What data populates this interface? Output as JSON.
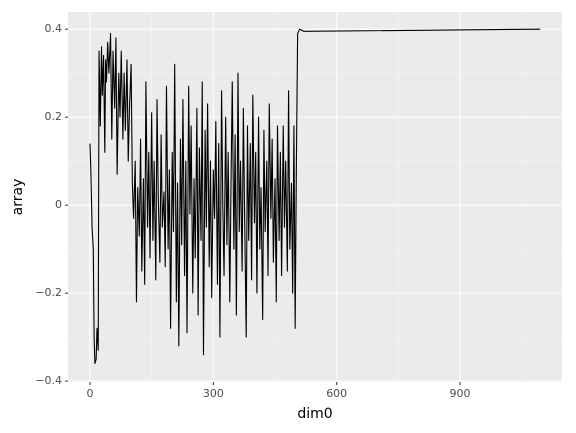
{
  "chart_data": {
    "type": "line",
    "xlabel": "dim0",
    "ylabel": "array",
    "color": "#000000",
    "grid": true,
    "x": [
      0,
      2,
      5,
      8,
      10,
      12,
      15,
      17,
      20,
      22,
      25,
      28,
      30,
      33,
      36,
      38,
      40,
      43,
      46,
      50,
      53,
      56,
      60,
      63,
      66,
      70,
      73,
      76,
      80,
      83,
      86,
      90,
      93,
      96,
      100,
      103,
      106,
      110,
      113,
      116,
      120,
      123,
      126,
      130,
      133,
      136,
      140,
      143,
      146,
      150,
      153,
      156,
      160,
      163,
      166,
      170,
      173,
      176,
      180,
      183,
      186,
      190,
      193,
      196,
      200,
      203,
      206,
      210,
      213,
      216,
      220,
      223,
      226,
      230,
      233,
      236,
      240,
      243,
      246,
      250,
      253,
      256,
      260,
      263,
      266,
      270,
      273,
      276,
      280,
      283,
      286,
      290,
      293,
      296,
      300,
      303,
      306,
      310,
      313,
      316,
      320,
      323,
      326,
      330,
      333,
      336,
      340,
      343,
      346,
      350,
      353,
      356,
      360,
      363,
      366,
      370,
      373,
      376,
      380,
      383,
      386,
      390,
      393,
      396,
      400,
      403,
      406,
      410,
      413,
      416,
      420,
      423,
      426,
      430,
      433,
      436,
      440,
      443,
      446,
      450,
      453,
      456,
      460,
      463,
      466,
      470,
      473,
      476,
      480,
      483,
      486,
      490,
      493,
      496,
      499,
      502,
      505,
      510,
      520,
      1095
    ],
    "values": [
      0.14,
      0.08,
      -0.05,
      -0.1,
      -0.3,
      -0.36,
      -0.35,
      -0.28,
      -0.33,
      0.35,
      0.18,
      0.36,
      0.25,
      0.34,
      0.12,
      0.33,
      0.28,
      0.37,
      0.3,
      0.39,
      0.15,
      0.35,
      0.22,
      0.38,
      0.07,
      0.3,
      0.2,
      0.35,
      0.15,
      0.3,
      0.17,
      0.33,
      0.1,
      0.22,
      0.32,
      0.05,
      -0.03,
      0.1,
      -0.22,
      0.04,
      -0.07,
      0.15,
      -0.15,
      0.06,
      -0.18,
      0.28,
      -0.05,
      0.12,
      -0.12,
      0.21,
      -0.08,
      0.1,
      -0.17,
      0.24,
      0.02,
      -0.13,
      0.16,
      -0.05,
      0.03,
      -0.14,
      0.27,
      -0.1,
      0.08,
      -0.28,
      0.12,
      -0.06,
      0.32,
      -0.22,
      0.05,
      -0.32,
      0.15,
      -0.09,
      0.24,
      -0.16,
      0.1,
      -0.29,
      0.27,
      -0.02,
      0.18,
      -0.2,
      0.06,
      -0.12,
      0.22,
      -0.25,
      0.13,
      -0.08,
      0.28,
      -0.34,
      0.17,
      -0.05,
      0.23,
      -0.14,
      0.1,
      -0.21,
      0.08,
      -0.03,
      0.19,
      -0.18,
      0.14,
      -0.3,
      0.26,
      0,
      -0.16,
      0.2,
      -0.09,
      0.12,
      -0.22,
      0.05,
      0.28,
      -0.1,
      0.16,
      -0.25,
      0.3,
      -0.06,
      0.1,
      -0.15,
      0.22,
      -0.02,
      -0.3,
      0.18,
      -0.08,
      0.14,
      -0.17,
      0.25,
      -0.04,
      0.12,
      -0.2,
      0.2,
      -0.1,
      0.04,
      -0.26,
      0.17,
      -0.06,
      0.1,
      -0.16,
      0.23,
      -0.03,
      0.15,
      -0.13,
      0.06,
      -0.22,
      0.18,
      -0.08,
      0.12,
      -0.16,
      0.18,
      -0.05,
      0.1,
      -0.15,
      0.26,
      -0.1,
      0.05,
      -0.2,
      0.18,
      -0.28,
      0.1,
      0.39,
      0.4,
      0.395,
      0.4
    ],
    "xlim": [
      -53.5,
      1148
    ],
    "xticks": [
      0,
      300,
      600,
      900
    ],
    "xminor": [
      150,
      450,
      750,
      1050
    ],
    "ylim": [
      -0.402,
      0.439
    ],
    "yticks": [
      {
        "value": -0.4,
        "label": "−0.4"
      },
      {
        "value": -0.2,
        "label": "−0.2"
      },
      0,
      0.2,
      0.4
    ],
    "yminor": [
      -0.3,
      -0.1,
      0.1,
      0.3
    ]
  }
}
